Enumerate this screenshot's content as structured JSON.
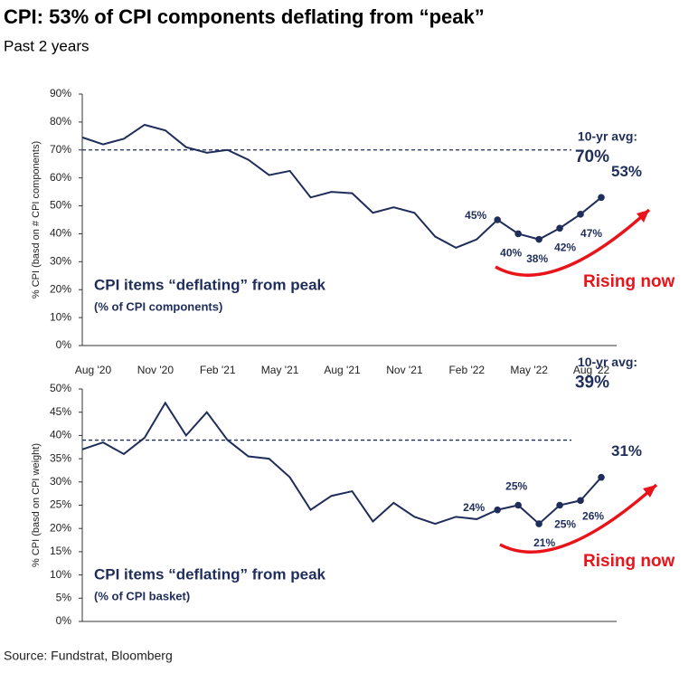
{
  "title": "CPI: 53% of CPI components deflating from “peak”",
  "subtitle": "Past 2 years",
  "source": "Source: Fundstrat, Bloomberg",
  "chart_data": [
    {
      "type": "line",
      "ylabel": "% CPI (basd on # CPI components)",
      "categories": [
        "Aug '20",
        null,
        null,
        "Nov '20",
        null,
        null,
        "Feb '21",
        null,
        null,
        "May '21",
        null,
        null,
        "Aug '21",
        null,
        null,
        "Nov '21",
        null,
        null,
        "Feb '22",
        null,
        null,
        "May '22",
        null,
        null,
        "Aug '22",
        null
      ],
      "series": [
        {
          "name": "CPI items “deflating” from peak",
          "color": "#1f2d5a",
          "values": [
            74.5,
            72,
            74,
            79,
            77,
            71,
            69,
            70,
            66.5,
            61,
            62.5,
            53,
            55,
            54.5,
            47.5,
            49.5,
            47.5,
            39,
            35,
            38,
            45,
            40,
            38,
            42,
            47,
            53
          ],
          "value_labels": [
            null,
            null,
            null,
            null,
            null,
            null,
            null,
            null,
            null,
            null,
            null,
            null,
            null,
            null,
            null,
            null,
            null,
            null,
            null,
            null,
            "45%",
            "40%",
            "38%",
            "42%",
            "47%",
            "53%"
          ]
        }
      ],
      "legend_note": "(% of CPI components)",
      "reference_line": {
        "value": 70,
        "label": "10-yr avg:",
        "value_label": "70%"
      },
      "annotation": "Rising now",
      "ylim": [
        0,
        90
      ],
      "yticks": [
        {
          "value": 0,
          "label": "0%"
        },
        {
          "value": 10,
          "label": "10%"
        },
        {
          "value": 20,
          "label": "20%"
        },
        {
          "value": 30,
          "label": "30%"
        },
        {
          "value": 40,
          "label": "40%"
        },
        {
          "value": 50,
          "label": "50%"
        },
        {
          "value": 60,
          "label": "60%"
        },
        {
          "value": 70,
          "label": "70%"
        },
        {
          "value": 80,
          "label": "80%"
        },
        {
          "value": 90,
          "label": "90%"
        }
      ]
    },
    {
      "type": "line",
      "ylabel": "% CPI (basd on CPI weight)",
      "categories": [
        null,
        null,
        null,
        null,
        null,
        null,
        null,
        null,
        null,
        null,
        null,
        null,
        null,
        null,
        null,
        null,
        null,
        null,
        null,
        null,
        null,
        null,
        null,
        null,
        null,
        null
      ],
      "series": [
        {
          "name": "CPI items “deflating” from peak",
          "color": "#1f2d5a",
          "values": [
            37,
            38.5,
            36,
            39.5,
            47,
            40,
            45,
            39,
            35.5,
            35,
            31,
            24,
            27,
            28,
            21.5,
            25.5,
            22.5,
            21,
            22.5,
            22,
            24,
            25,
            21,
            25,
            26,
            31
          ],
          "value_labels": [
            null,
            null,
            null,
            null,
            null,
            null,
            null,
            null,
            null,
            null,
            null,
            null,
            null,
            null,
            null,
            null,
            null,
            null,
            null,
            null,
            "24%",
            "25%",
            "21%",
            "25%",
            "26%",
            "31%"
          ]
        }
      ],
      "legend_note": "(% of CPI basket)",
      "reference_line": {
        "value": 39,
        "label": "10-yr avg:",
        "value_label": "39%"
      },
      "annotation": "Rising now",
      "ylim": [
        0,
        50
      ],
      "yticks": [
        {
          "value": 0,
          "label": "0%"
        },
        {
          "value": 5,
          "label": "5%"
        },
        {
          "value": 10,
          "label": "10%"
        },
        {
          "value": 15,
          "label": "15%"
        },
        {
          "value": 20,
          "label": "20%"
        },
        {
          "value": 25,
          "label": "25%"
        },
        {
          "value": 30,
          "label": "30%"
        },
        {
          "value": 35,
          "label": "35%"
        },
        {
          "value": 40,
          "label": "40%"
        },
        {
          "value": 45,
          "label": "45%"
        },
        {
          "value": 50,
          "label": "50%"
        }
      ]
    }
  ]
}
